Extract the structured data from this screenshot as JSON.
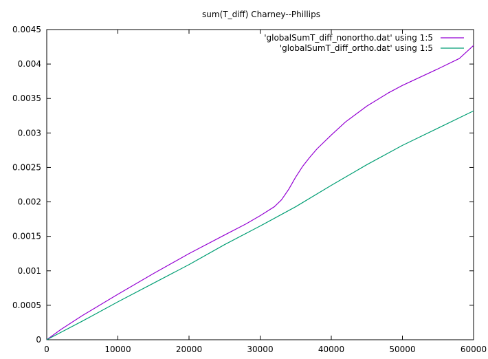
{
  "chart_data": {
    "type": "line",
    "title": "sum(T_diff) Charney--Phillips",
    "xlabel": "",
    "ylabel": "",
    "xlim": [
      0,
      60000
    ],
    "ylim": [
      0,
      0.0045
    ],
    "x_ticks": [
      {
        "value": 0,
        "label": "0"
      },
      {
        "value": 10000,
        "label": "10000"
      },
      {
        "value": 20000,
        "label": "20000"
      },
      {
        "value": 30000,
        "label": "30000"
      },
      {
        "value": 40000,
        "label": "40000"
      },
      {
        "value": 50000,
        "label": "50000"
      },
      {
        "value": 60000,
        "label": "60000"
      }
    ],
    "y_ticks": [
      {
        "value": 0,
        "label": "0"
      },
      {
        "value": 0.0005,
        "label": "0.0005"
      },
      {
        "value": 0.001,
        "label": "0.001"
      },
      {
        "value": 0.0015,
        "label": "0.0015"
      },
      {
        "value": 0.002,
        "label": "0.002"
      },
      {
        "value": 0.0025,
        "label": "0.0025"
      },
      {
        "value": 0.003,
        "label": "0.003"
      },
      {
        "value": 0.0035,
        "label": "0.0035"
      },
      {
        "value": 0.004,
        "label": "0.004"
      },
      {
        "value": 0.0045,
        "label": "0.0045"
      }
    ],
    "grid": false,
    "legend_position": "top-right",
    "series": [
      {
        "name": "'globalSumT_diff_nonortho.dat' using 1:5",
        "color": "#9400d3",
        "points": [
          [
            0,
            0
          ],
          [
            2000,
            0.00015
          ],
          [
            5000,
            0.00035
          ],
          [
            10000,
            0.00066
          ],
          [
            15000,
            0.00096
          ],
          [
            20000,
            0.00125
          ],
          [
            25000,
            0.00152
          ],
          [
            28000,
            0.00168
          ],
          [
            30000,
            0.0018
          ],
          [
            32000,
            0.00193
          ],
          [
            33000,
            0.00203
          ],
          [
            34000,
            0.00218
          ],
          [
            35000,
            0.00236
          ],
          [
            36000,
            0.00252
          ],
          [
            37000,
            0.00265
          ],
          [
            38000,
            0.00277
          ],
          [
            40000,
            0.00297
          ],
          [
            42000,
            0.00316
          ],
          [
            45000,
            0.00339
          ],
          [
            48000,
            0.00358
          ],
          [
            50000,
            0.00369
          ],
          [
            55000,
            0.00393
          ],
          [
            58000,
            0.00408
          ],
          [
            60000,
            0.00427
          ]
        ]
      },
      {
        "name": "'globalSumT_diff_ortho.dat' using 1:5",
        "color": "#009e73",
        "points": [
          [
            0,
            0
          ],
          [
            5000,
            0.00027
          ],
          [
            10000,
            0.00055
          ],
          [
            15000,
            0.00082
          ],
          [
            20000,
            0.00109
          ],
          [
            25000,
            0.00138
          ],
          [
            30000,
            0.00165
          ],
          [
            35000,
            0.00193
          ],
          [
            40000,
            0.00224
          ],
          [
            45000,
            0.00254
          ],
          [
            50000,
            0.00282
          ],
          [
            55000,
            0.00307
          ],
          [
            60000,
            0.00332
          ]
        ]
      }
    ]
  }
}
